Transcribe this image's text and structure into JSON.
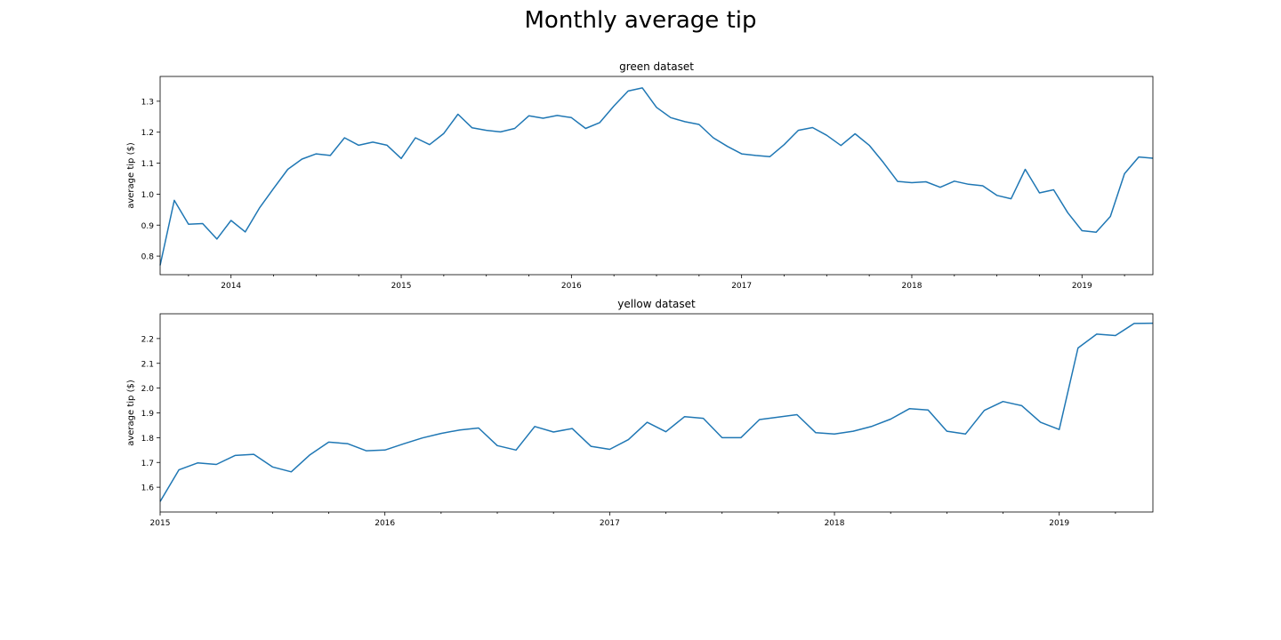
{
  "figure": {
    "title": "Monthly average tip"
  },
  "colors": {
    "line": "#1f77b4",
    "axes": "#000000",
    "background": "#ffffff"
  },
  "chart_data": [
    {
      "type": "line",
      "title": "green dataset",
      "xlabel": "",
      "ylabel": "average tip ($)",
      "grid": false,
      "xlim": [
        "2013-08",
        "2019-06"
      ],
      "ylim": [
        0.74,
        1.38
      ],
      "yticks": [
        0.8,
        0.9,
        1.0,
        1.1,
        1.2,
        1.3
      ],
      "ytick_labels": [
        "0.8",
        "0.9",
        "1.0",
        "1.1",
        "1.2",
        "1.3"
      ],
      "xticks": [
        "2014-01",
        "2015-01",
        "2016-01",
        "2017-01",
        "2018-01",
        "2019-01"
      ],
      "xtick_labels": [
        "2014",
        "2015",
        "2016",
        "2017",
        "2018",
        "2019"
      ],
      "series": [
        {
          "x": [
            "2013-08",
            "2013-09",
            "2013-10",
            "2013-11",
            "2013-12",
            "2014-01",
            "2014-02",
            "2014-03",
            "2014-04",
            "2014-05",
            "2014-06",
            "2014-07",
            "2014-08",
            "2014-09",
            "2014-10",
            "2014-11",
            "2014-12",
            "2015-01",
            "2015-02",
            "2015-03",
            "2015-04",
            "2015-05",
            "2015-06",
            "2015-07",
            "2015-08",
            "2015-09",
            "2015-10",
            "2015-11",
            "2015-12",
            "2016-01",
            "2016-02",
            "2016-03",
            "2016-04",
            "2016-05",
            "2016-06",
            "2016-07",
            "2016-08",
            "2016-09",
            "2016-10",
            "2016-11",
            "2016-12",
            "2017-01",
            "2017-02",
            "2017-03",
            "2017-04",
            "2017-05",
            "2017-06",
            "2017-07",
            "2017-08",
            "2017-09",
            "2017-10",
            "2017-11",
            "2017-12",
            "2018-01",
            "2018-02",
            "2018-03",
            "2018-04",
            "2018-05",
            "2018-06",
            "2018-07",
            "2018-08",
            "2018-09",
            "2018-10",
            "2018-11",
            "2018-12",
            "2019-01",
            "2019-02",
            "2019-03",
            "2019-04",
            "2019-05",
            "2019-06"
          ],
          "y": [
            0.77,
            0.98,
            0.903,
            0.905,
            0.855,
            0.915,
            0.878,
            0.955,
            1.018,
            1.08,
            1.113,
            1.13,
            1.125,
            1.182,
            1.158,
            1.168,
            1.158,
            1.115,
            1.182,
            1.16,
            1.196,
            1.258,
            1.214,
            1.206,
            1.201,
            1.212,
            1.253,
            1.245,
            1.254,
            1.247,
            1.212,
            1.231,
            1.285,
            1.333,
            1.343,
            1.28,
            1.247,
            1.234,
            1.225,
            1.182,
            1.154,
            1.13,
            1.125,
            1.121,
            1.16,
            1.206,
            1.215,
            1.19,
            1.157,
            1.195,
            1.158,
            1.102,
            1.041,
            1.037,
            1.04,
            1.022,
            1.042,
            1.032,
            1.027,
            0.996,
            0.985,
            1.08,
            1.004,
            1.014,
            0.94,
            0.882,
            0.877,
            0.928,
            1.066,
            1.12,
            1.116
          ]
        }
      ]
    },
    {
      "type": "line",
      "title": "yellow dataset",
      "xlabel": "",
      "ylabel": "average tip ($)",
      "grid": false,
      "xlim": [
        "2015-01",
        "2019-06"
      ],
      "ylim": [
        1.5,
        2.3
      ],
      "yticks": [
        1.6,
        1.7,
        1.8,
        1.9,
        2.0,
        2.1,
        2.2
      ],
      "ytick_labels": [
        "1.6",
        "1.7",
        "1.8",
        "1.9",
        "2.0",
        "2.1",
        "2.2"
      ],
      "xticks": [
        "2015-01",
        "2016-01",
        "2017-01",
        "2018-01",
        "2019-01"
      ],
      "xtick_labels": [
        "2015",
        "2016",
        "2017",
        "2018",
        "2019"
      ],
      "series": [
        {
          "x": [
            "2015-01",
            "2015-02",
            "2015-03",
            "2015-04",
            "2015-05",
            "2015-06",
            "2015-07",
            "2015-08",
            "2015-09",
            "2015-10",
            "2015-11",
            "2015-12",
            "2016-01",
            "2016-02",
            "2016-03",
            "2016-04",
            "2016-05",
            "2016-06",
            "2016-07",
            "2016-08",
            "2016-09",
            "2016-10",
            "2016-11",
            "2016-12",
            "2017-01",
            "2017-02",
            "2017-03",
            "2017-04",
            "2017-05",
            "2017-06",
            "2017-07",
            "2017-08",
            "2017-09",
            "2017-10",
            "2017-11",
            "2017-12",
            "2018-01",
            "2018-02",
            "2018-03",
            "2018-04",
            "2018-05",
            "2018-06",
            "2018-07",
            "2018-08",
            "2018-09",
            "2018-10",
            "2018-11",
            "2018-12",
            "2019-01",
            "2019-02",
            "2019-03",
            "2019-04",
            "2019-05",
            "2019-06"
          ],
          "y": [
            1.542,
            1.67,
            1.698,
            1.692,
            1.728,
            1.733,
            1.682,
            1.662,
            1.731,
            1.782,
            1.776,
            1.747,
            1.75,
            1.775,
            1.799,
            1.817,
            1.831,
            1.839,
            1.768,
            1.75,
            1.845,
            1.823,
            1.837,
            1.765,
            1.753,
            1.792,
            1.862,
            1.824,
            1.885,
            1.878,
            1.8,
            1.8,
            1.873,
            1.883,
            1.893,
            1.82,
            1.815,
            1.826,
            1.846,
            1.875,
            1.917,
            1.912,
            1.826,
            1.815,
            1.91,
            1.946,
            1.929,
            1.862,
            1.833,
            2.162,
            2.218,
            2.212,
            2.261,
            2.262
          ]
        }
      ]
    }
  ]
}
